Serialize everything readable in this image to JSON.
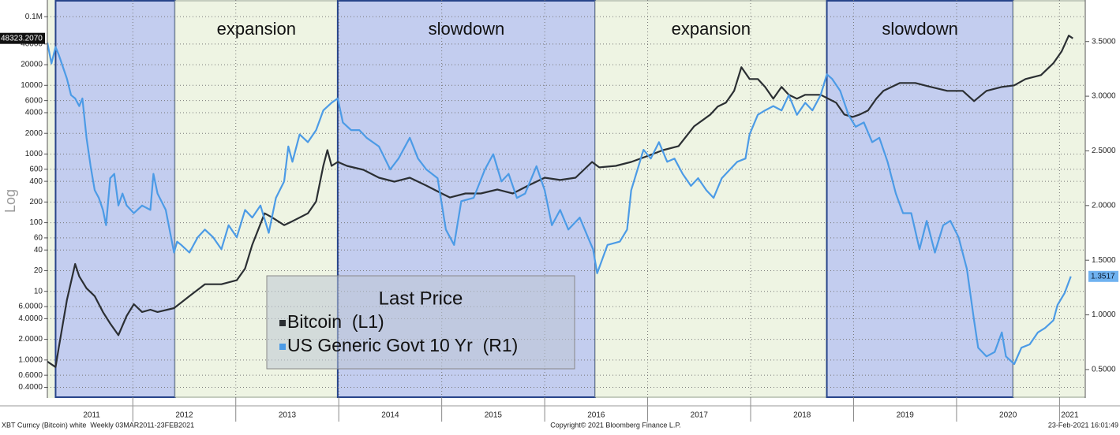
{
  "chart_data": {
    "type": "line",
    "yscale": "log",
    "y_label": "Log",
    "legend_title": "Last Price",
    "grid": true,
    "xlim": [
      2011.17,
      2021.25
    ],
    "xticks": [
      {
        "value": 2011.6,
        "label": "2011"
      },
      {
        "value": 2012.5,
        "label": "2012"
      },
      {
        "value": 2013.5,
        "label": "2013"
      },
      {
        "value": 2014.5,
        "label": "2014"
      },
      {
        "value": 2015.5,
        "label": "2015"
      },
      {
        "value": 2016.5,
        "label": "2016"
      },
      {
        "value": 2017.5,
        "label": "2017"
      },
      {
        "value": 2018.5,
        "label": "2018"
      },
      {
        "value": 2019.5,
        "label": "2019"
      },
      {
        "value": 2020.5,
        "label": "2020"
      },
      {
        "value": 2021.1,
        "label": "2021"
      }
    ],
    "ylim": [
      0.28,
      175000
    ],
    "yticks": [
      {
        "value": 0.4,
        "label": "0.4000"
      },
      {
        "value": 0.6,
        "label": "0.6000"
      },
      {
        "value": 1,
        "label": "1.0000"
      },
      {
        "value": 2,
        "label": "2.0000"
      },
      {
        "value": 4,
        "label": "4.0000"
      },
      {
        "value": 6,
        "label": "6.0000"
      },
      10,
      20,
      40,
      60,
      100,
      200,
      400,
      600,
      1000,
      2000,
      4000,
      6000,
      10000,
      20000,
      40000,
      {
        "value": 100000,
        "label": "0.1M"
      }
    ],
    "y2lim": [
      0.24,
      3.88
    ],
    "y2ticks": [
      {
        "value": 0.5,
        "label": "0.5000"
      },
      {
        "value": 1,
        "label": "1.0000"
      },
      {
        "value": 1.5,
        "label": "1.5000"
      },
      {
        "value": 2,
        "label": "2.0000"
      },
      {
        "value": 2.5,
        "label": "2.5000"
      },
      {
        "value": 3,
        "label": "3.0000"
      },
      {
        "value": 3.5,
        "label": "3.5000"
      }
    ],
    "regions": [
      {
        "start": 2011.25,
        "end": 2012.41,
        "color": "#c3cdef"
      },
      {
        "start": 2012.41,
        "end": 2013.99,
        "color": "#eef4e3",
        "label": "expansion"
      },
      {
        "start": 2013.99,
        "end": 2016.49,
        "color": "#c3cdef",
        "label": "slowdown"
      },
      {
        "start": 2016.49,
        "end": 2018.74,
        "color": "#eef4e3",
        "label": "expansion"
      },
      {
        "start": 2018.74,
        "end": 2020.55,
        "color": "#c3cdef",
        "label": "slowdown"
      },
      {
        "start": 2020.55,
        "end": 2021.25,
        "color": "#eef4e3"
      }
    ],
    "series": [
      {
        "name": "Bitcoin  (L1)",
        "color": "#2b2f33",
        "last_value_label": "48323.2070",
        "x": [
          2011.17,
          2011.25,
          2011.28,
          2011.36,
          2011.44,
          2011.48,
          2011.55,
          2011.63,
          2011.71,
          2011.78,
          2011.86,
          2011.94,
          2012.01,
          2012.09,
          2012.17,
          2012.24,
          2012.4,
          2012.55,
          2012.7,
          2012.86,
          2013.01,
          2013.09,
          2013.16,
          2013.28,
          2013.35,
          2013.47,
          2013.55,
          2013.7,
          2013.78,
          2013.85,
          2013.89,
          2013.93,
          2013.99,
          2014.08,
          2014.24,
          2014.39,
          2014.54,
          2014.69,
          2014.85,
          2015.0,
          2015.08,
          2015.23,
          2015.38,
          2015.54,
          2015.69,
          2015.84,
          2016.0,
          2016.15,
          2016.3,
          2016.46,
          2016.53,
          2016.69,
          2016.84,
          2016.99,
          2017.15,
          2017.3,
          2017.45,
          2017.61,
          2017.68,
          2017.76,
          2017.84,
          2017.91,
          2017.99,
          2018.07,
          2018.14,
          2018.22,
          2018.3,
          2018.37,
          2018.45,
          2018.53,
          2018.68,
          2018.83,
          2018.91,
          2018.99,
          2019.06,
          2019.14,
          2019.22,
          2019.29,
          2019.45,
          2019.6,
          2019.75,
          2019.91,
          2020.06,
          2020.17,
          2020.29,
          2020.44,
          2020.56,
          2020.67,
          2020.82,
          2020.94,
          2021.02,
          2021.09,
          2021.13
        ],
        "values": [
          0.95,
          0.79,
          1.5,
          7.5,
          25,
          16.5,
          11.1,
          8.5,
          5.0,
          3.4,
          2.3,
          4.4,
          6.5,
          5.0,
          5.4,
          5.0,
          5.7,
          8.5,
          12.7,
          12.7,
          14.5,
          21.5,
          47.7,
          137,
          120,
          92,
          105,
          137,
          204,
          672,
          1140,
          672,
          767,
          672,
          589,
          452,
          396,
          452,
          347,
          266,
          233,
          266,
          266,
          304,
          266,
          347,
          452,
          418,
          452,
          767,
          638,
          672,
          767,
          924,
          1140,
          1303,
          2523,
          3758,
          4898,
          5585,
          8318,
          18370,
          12360,
          12360,
          9480,
          6380,
          9480,
          7280,
          6380,
          7280,
          7280,
          5585,
          3758,
          3470,
          3758,
          4290,
          6380,
          8318,
          10820,
          10820,
          9480,
          8318,
          8318,
          5890,
          8318,
          9480,
          10000,
          12360,
          14100,
          21000,
          31200,
          53000,
          48323.207
        ]
      },
      {
        "name": "US Generic Govt 10 Yr  (R1)",
        "color": "#4c9be6",
        "axis": "y2",
        "last_value_label": "1.3517",
        "x": [
          2011.17,
          2011.21,
          2011.25,
          2011.28,
          2011.36,
          2011.4,
          2011.44,
          2011.48,
          2011.51,
          2011.55,
          2011.59,
          2011.63,
          2011.67,
          2011.71,
          2011.74,
          2011.78,
          2011.82,
          2011.86,
          2011.9,
          2011.94,
          2012.01,
          2012.09,
          2012.17,
          2012.2,
          2012.24,
          2012.32,
          2012.4,
          2012.43,
          2012.47,
          2012.55,
          2012.63,
          2012.7,
          2012.78,
          2012.86,
          2012.93,
          2013.01,
          2013.09,
          2013.16,
          2013.24,
          2013.32,
          2013.39,
          2013.47,
          2013.51,
          2013.55,
          2013.62,
          2013.7,
          2013.78,
          2013.85,
          2013.93,
          2013.99,
          2014.04,
          2014.12,
          2014.2,
          2014.27,
          2014.39,
          2014.5,
          2014.58,
          2014.69,
          2014.77,
          2014.85,
          2014.96,
          2015.04,
          2015.12,
          2015.19,
          2015.31,
          2015.42,
          2015.5,
          2015.58,
          2015.65,
          2015.73,
          2015.81,
          2015.92,
          2016.0,
          2016.07,
          2016.15,
          2016.23,
          2016.34,
          2016.42,
          2016.47,
          2016.51,
          2016.61,
          2016.73,
          2016.8,
          2016.84,
          2016.96,
          2017.03,
          2017.11,
          2017.19,
          2017.26,
          2017.34,
          2017.42,
          2017.49,
          2017.57,
          2017.64,
          2017.72,
          2017.8,
          2017.87,
          2017.95,
          2017.99,
          2018.07,
          2018.14,
          2018.22,
          2018.3,
          2018.37,
          2018.45,
          2018.53,
          2018.6,
          2018.68,
          2018.74,
          2018.79,
          2018.87,
          2018.95,
          2019.02,
          2019.1,
          2019.18,
          2019.25,
          2019.33,
          2019.41,
          2019.48,
          2019.56,
          2019.64,
          2019.71,
          2019.79,
          2019.87,
          2019.94,
          2020.02,
          2020.1,
          2020.17,
          2020.21,
          2020.29,
          2020.37,
          2020.44,
          2020.48,
          2020.56,
          2020.63,
          2020.71,
          2020.79,
          2020.86,
          2020.94,
          2020.98,
          2021.05,
          2021.11
        ],
        "values": [
          3.49,
          3.3,
          3.45,
          3.38,
          3.16,
          3.01,
          2.98,
          2.91,
          2.98,
          2.62,
          2.36,
          2.14,
          2.07,
          1.96,
          1.82,
          2.25,
          2.29,
          2.0,
          2.11,
          2.0,
          1.93,
          2.0,
          1.96,
          2.29,
          2.11,
          1.96,
          1.57,
          1.67,
          1.64,
          1.57,
          1.71,
          1.78,
          1.71,
          1.6,
          1.82,
          1.71,
          1.96,
          1.89,
          2.0,
          1.75,
          2.07,
          2.22,
          2.54,
          2.4,
          2.65,
          2.58,
          2.69,
          2.87,
          2.94,
          2.98,
          2.76,
          2.69,
          2.69,
          2.62,
          2.54,
          2.33,
          2.43,
          2.62,
          2.43,
          2.33,
          2.25,
          1.78,
          1.64,
          2.04,
          2.07,
          2.33,
          2.47,
          2.22,
          2.29,
          2.07,
          2.11,
          2.36,
          2.14,
          1.82,
          1.96,
          1.78,
          1.89,
          1.71,
          1.6,
          1.38,
          1.64,
          1.67,
          1.78,
          2.14,
          2.51,
          2.43,
          2.58,
          2.4,
          2.43,
          2.29,
          2.18,
          2.25,
          2.14,
          2.07,
          2.25,
          2.33,
          2.4,
          2.43,
          2.65,
          2.83,
          2.87,
          2.91,
          2.87,
          3.01,
          2.83,
          2.94,
          2.87,
          3.01,
          3.2,
          3.16,
          3.05,
          2.83,
          2.72,
          2.76,
          2.58,
          2.62,
          2.4,
          2.11,
          1.93,
          1.93,
          1.6,
          1.86,
          1.57,
          1.82,
          1.86,
          1.71,
          1.42,
          0.95,
          0.7,
          0.62,
          0.66,
          0.84,
          0.62,
          0.55,
          0.7,
          0.73,
          0.84,
          0.88,
          0.95,
          1.09,
          1.2,
          1.3517
        ]
      }
    ],
    "footnotes": [
      "XBT Curncy (Bitcoin) white  Weekly 03MAR2011-23FEB2021",
      "Copyright© 2021 Bloomberg Finance L.P.",
      "23-Feb-2021 16:01:49"
    ]
  }
}
